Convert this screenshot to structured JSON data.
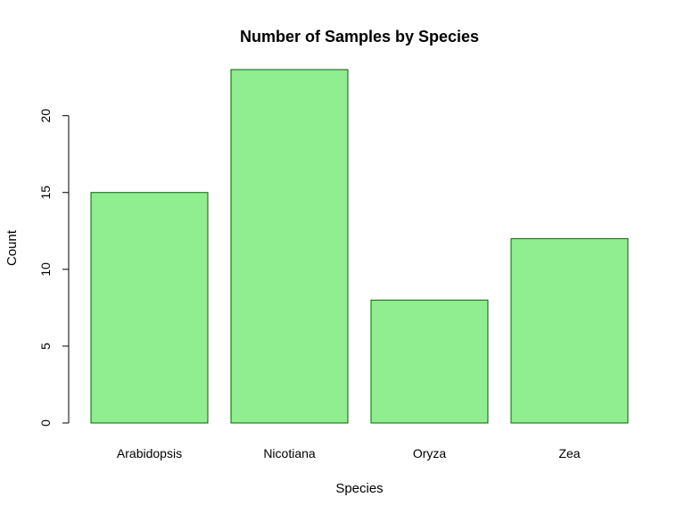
{
  "chart_data": {
    "type": "bar",
    "title": "Number of Samples by Species",
    "xlabel": "Species",
    "ylabel": "Count",
    "categories": [
      "Arabidopsis",
      "Nicotiana",
      "Oryza",
      "Zea"
    ],
    "values": [
      15,
      23,
      8,
      12
    ],
    "ylim": [
      0,
      23
    ],
    "yticks": [
      0,
      5,
      10,
      15,
      20
    ],
    "grid": false,
    "bar_fill": "#90ee90",
    "bar_stroke": "#006400"
  }
}
